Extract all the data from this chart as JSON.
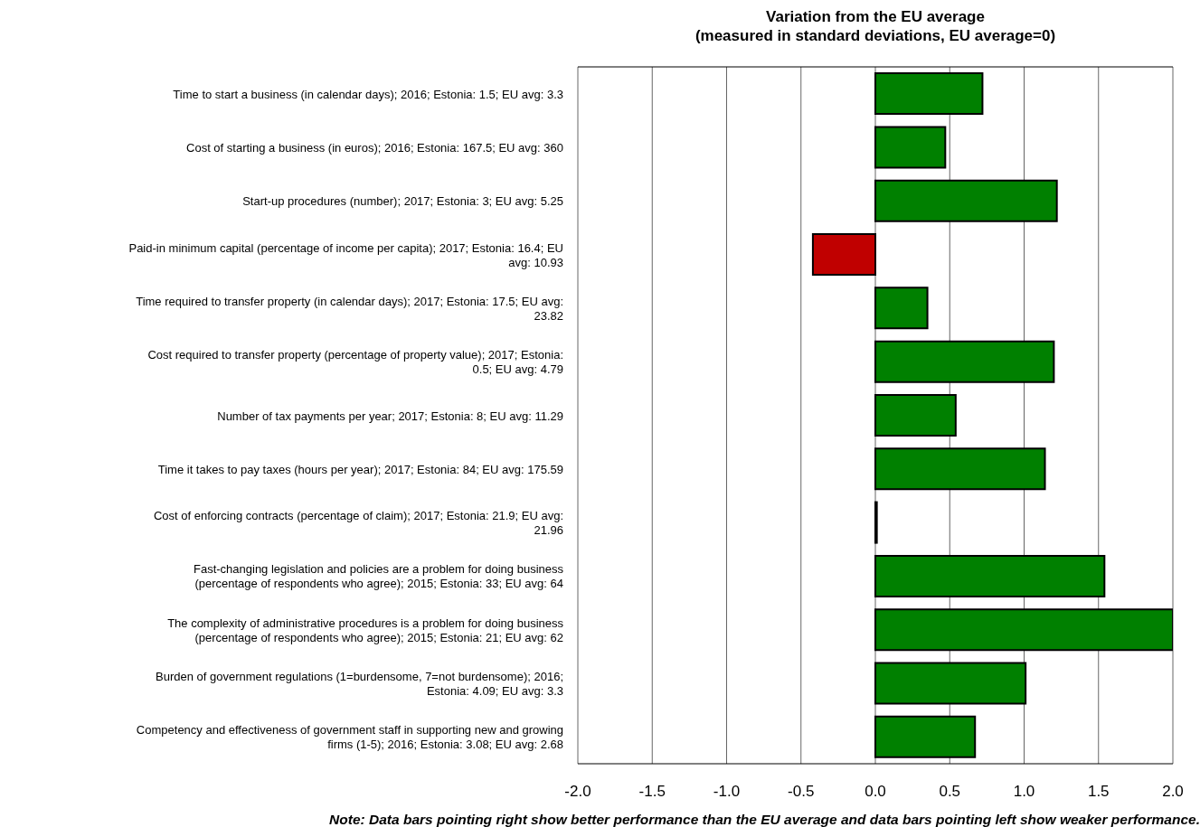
{
  "chart_data": {
    "type": "bar",
    "orientation": "horizontal",
    "title": "Variation from the EU average\n(measured in standard deviations, EU average=0)",
    "categories": [
      "Time to start a business (in calendar days); 2016; Estonia: 1.5; EU avg: 3.3",
      "Cost of starting a business (in euros); 2016; Estonia: 167.5; EU avg: 360",
      "Start-up procedures (number); 2017; Estonia: 3; EU avg: 5.25",
      "Paid-in minimum capital (percentage of income per capita); 2017; Estonia: 16.4; EU avg: 10.93",
      "Time required to transfer property (in calendar days); 2017; Estonia: 17.5; EU avg: 23.82",
      "Cost required to transfer property (percentage of property value); 2017; Estonia: 0.5; EU avg: 4.79",
      "Number of tax payments per year; 2017; Estonia: 8; EU avg: 11.29",
      "Time it takes to pay taxes (hours per year); 2017; Estonia: 84; EU avg: 175.59",
      "Cost of enforcing contracts (percentage of claim); 2017; Estonia: 21.9; EU avg: 21.96",
      "Fast-changing legislation and policies are a problem for doing business (percentage of respondents who agree); 2015; Estonia: 33; EU avg: 64",
      "The complexity of administrative procedures is a problem for doing business (percentage of respondents who agree); 2015; Estonia: 21; EU avg: 62",
      "Burden of government regulations (1=burdensome, 7=not burdensome); 2016; Estonia: 4.09; EU avg: 3.3",
      "Competency and effectiveness of government staff in supporting new and growing firms (1-5); 2016; Estonia: 3.08; EU avg: 2.68"
    ],
    "values": [
      0.72,
      0.47,
      1.22,
      -0.42,
      0.35,
      1.2,
      0.54,
      1.14,
      0.01,
      1.54,
      2.0,
      1.01,
      0.67
    ],
    "colors": [
      "#008000",
      "#008000",
      "#008000",
      "#c00000",
      "#008000",
      "#008000",
      "#008000",
      "#008000",
      "#008000",
      "#008000",
      "#008000",
      "#008000",
      "#008000"
    ],
    "xlim": [
      -2,
      2
    ],
    "xticks": [
      {
        "value": -2,
        "label": "-2.0"
      },
      {
        "value": -1.5,
        "label": "-1.5"
      },
      {
        "value": -1,
        "label": "-1.0"
      },
      {
        "value": -0.5,
        "label": "-0.5"
      },
      {
        "value": 0,
        "label": "0.0"
      },
      {
        "value": 0.5,
        "label": "0.5"
      },
      {
        "value": 1,
        "label": "1.0"
      },
      {
        "value": 1.5,
        "label": "1.5"
      },
      {
        "value": 2,
        "label": "2.0"
      }
    ],
    "grid": "x",
    "annotations": [
      "Note: Data bars pointing right show better performance than the EU average and data bars pointing left show weaker performance."
    ]
  }
}
